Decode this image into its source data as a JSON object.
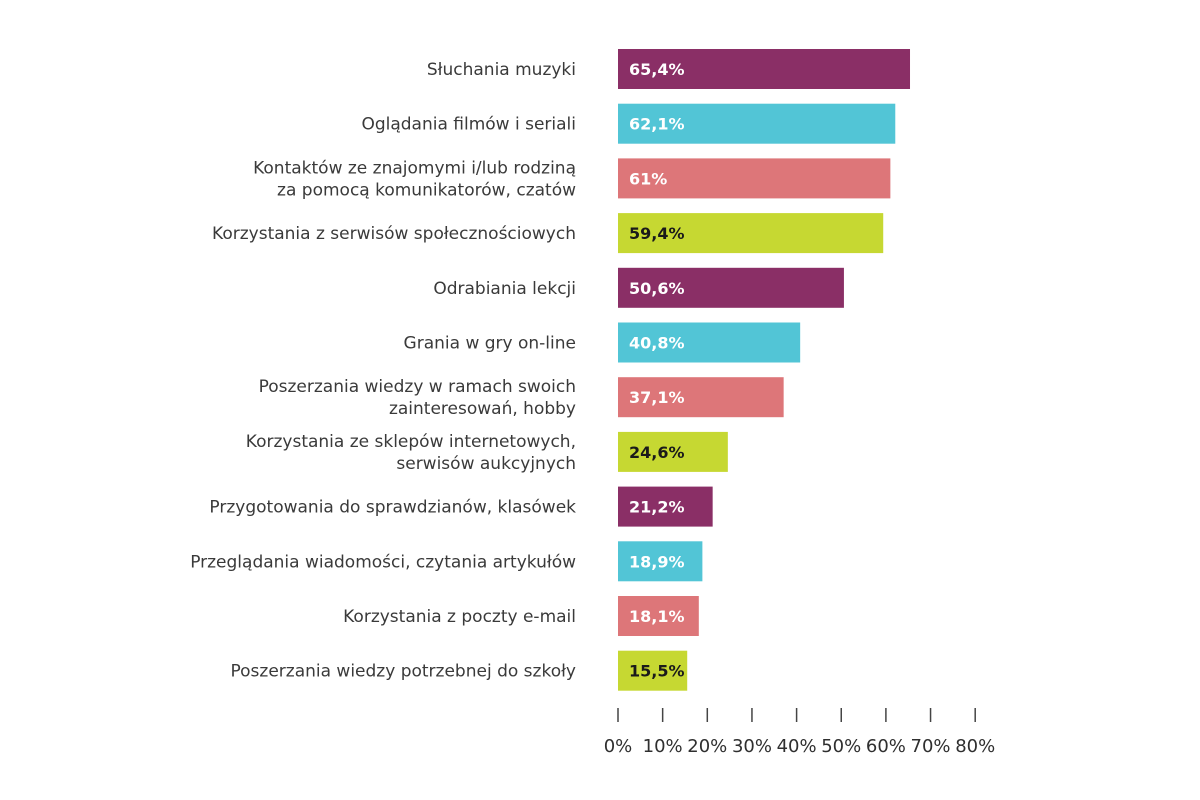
{
  "chart_data": {
    "type": "bar",
    "orientation": "horizontal",
    "categories": [
      "Słuchania muzyki",
      "Oglądania filmów i seriali",
      "Kontaktów ze znajomymi i/lub rodziną\nza pomocą komunikatorów, czatów",
      "Korzystania z serwisów społecznościowych",
      "Odrabiania lekcji",
      "Grania w gry on-line",
      "Poszerzania wiedzy w ramach swoich\nzainteresowań, hobby",
      "Korzystania ze sklepów internetowych,\nserwisów aukcyjnych",
      "Przygotowania do sprawdzianów, klasówek",
      "Przeglądania wiadomości, czytania artykułów",
      "Korzystania z poczty e-mail",
      "Poszerzania wiedzy potrzebnej do szkoły"
    ],
    "values": [
      65.4,
      62.1,
      61,
      59.4,
      50.6,
      40.8,
      37.1,
      24.6,
      21.2,
      18.9,
      18.1,
      15.5
    ],
    "value_labels": [
      "65,4%",
      "62,1%",
      "61%",
      "59,4%",
      "50,6%",
      "40,8%",
      "37,1%",
      "24,6%",
      "21,2%",
      "18,9%",
      "18,1%",
      "15,5%"
    ],
    "bar_colors": [
      "#8a2f66",
      "#52c5d6",
      "#dd7679",
      "#c6d832",
      "#8a2f66",
      "#52c5d6",
      "#dd7679",
      "#c6d832",
      "#8a2f66",
      "#52c5d6",
      "#dd7679",
      "#c6d832"
    ],
    "value_label_colors": [
      "#ffffff",
      "#ffffff",
      "#ffffff",
      "#1a1a1a",
      "#ffffff",
      "#ffffff",
      "#ffffff",
      "#1a1a1a",
      "#ffffff",
      "#ffffff",
      "#ffffff",
      "#1a1a1a"
    ],
    "xlim": [
      0,
      80
    ],
    "x_ticks": [
      0,
      10,
      20,
      30,
      40,
      50,
      60,
      70,
      80
    ],
    "x_tick_labels": [
      "0%",
      "10%",
      "20%",
      "30%",
      "40%",
      "50%",
      "60%",
      "70%",
      "80%"
    ],
    "title": "",
    "xlabel": "",
    "ylabel": "",
    "grid": false,
    "legend": "none"
  }
}
